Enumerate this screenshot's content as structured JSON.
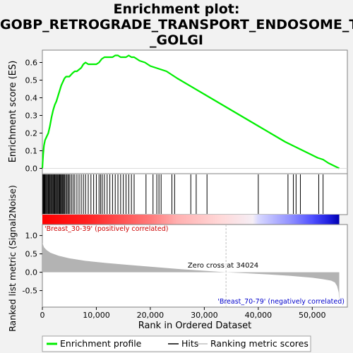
{
  "title_lines": [
    "Enrichment plot:",
    "GOBP_RETROGRADE_TRANSPORT_ENDOSOME_TO",
    "_GOLGI"
  ],
  "colors": {
    "es_line": "#00ee00",
    "hits": "#000000",
    "metric_fill": "#b3b3b3",
    "pos_label": "#cc0000",
    "neg_label": "#0000cc",
    "zero_line": "#bfbfbf"
  },
  "chart_data": {
    "type": "line",
    "x_range": [
      0,
      56500
    ],
    "enrichment": {
      "ylabel": "Enrichment score (ES)",
      "ylim": [
        -0.03,
        0.67
      ],
      "yticks": [
        0.0,
        0.1,
        0.2,
        0.3,
        0.4,
        0.5,
        0.6
      ],
      "ytick_labels": [
        "0.0",
        "0.1",
        "0.2",
        "0.3",
        "0.4",
        "0.5",
        "0.6"
      ],
      "series_name": "Enrichment profile",
      "points": [
        [
          0,
          0.0
        ],
        [
          50,
          0.03
        ],
        [
          150,
          0.08
        ],
        [
          300,
          0.13
        ],
        [
          500,
          0.16
        ],
        [
          800,
          0.18
        ],
        [
          1100,
          0.2
        ],
        [
          1400,
          0.24
        ],
        [
          1700,
          0.29
        ],
        [
          2000,
          0.33
        ],
        [
          2300,
          0.36
        ],
        [
          2600,
          0.38
        ],
        [
          2900,
          0.41
        ],
        [
          3200,
          0.44
        ],
        [
          3500,
          0.47
        ],
        [
          3800,
          0.49
        ],
        [
          4100,
          0.51
        ],
        [
          4400,
          0.52
        ],
        [
          4700,
          0.52
        ],
        [
          5000,
          0.52
        ],
        [
          5300,
          0.53
        ],
        [
          5600,
          0.54
        ],
        [
          6000,
          0.55
        ],
        [
          6400,
          0.55
        ],
        [
          6800,
          0.56
        ],
        [
          7200,
          0.57
        ],
        [
          7600,
          0.59
        ],
        [
          8000,
          0.6
        ],
        [
          8500,
          0.59
        ],
        [
          9000,
          0.59
        ],
        [
          9500,
          0.59
        ],
        [
          10000,
          0.59
        ],
        [
          10500,
          0.6
        ],
        [
          11000,
          0.62
        ],
        [
          11500,
          0.63
        ],
        [
          12000,
          0.63
        ],
        [
          12500,
          0.63
        ],
        [
          13000,
          0.63
        ],
        [
          13500,
          0.64
        ],
        [
          14000,
          0.64
        ],
        [
          14500,
          0.63
        ],
        [
          15000,
          0.63
        ],
        [
          15500,
          0.63
        ],
        [
          16000,
          0.64
        ],
        [
          16500,
          0.63
        ],
        [
          17000,
          0.63
        ],
        [
          18000,
          0.61
        ],
        [
          19000,
          0.6
        ],
        [
          20000,
          0.58
        ],
        [
          21000,
          0.57
        ],
        [
          22000,
          0.56
        ],
        [
          23000,
          0.55
        ],
        [
          24000,
          0.53
        ],
        [
          25000,
          0.51
        ],
        [
          30000,
          0.42
        ],
        [
          35000,
          0.33
        ],
        [
          40000,
          0.24
        ],
        [
          45000,
          0.15
        ],
        [
          47000,
          0.12
        ],
        [
          49000,
          0.09
        ],
        [
          51000,
          0.06
        ],
        [
          52000,
          0.05
        ],
        [
          53000,
          0.03
        ],
        [
          55000,
          0.0
        ]
      ]
    },
    "hits": {
      "series_name": "Hits",
      "positions": [
        100,
        200,
        300,
        400,
        500,
        650,
        800,
        950,
        1100,
        1250,
        1400,
        1550,
        1700,
        1850,
        2000,
        2150,
        2300,
        2450,
        2600,
        2750,
        2900,
        3050,
        3200,
        3350,
        3500,
        3650,
        3800,
        3950,
        4100,
        4300,
        4500,
        4700,
        4900,
        5100,
        5400,
        5700,
        6000,
        6400,
        6800,
        7200,
        7600,
        8000,
        8500,
        9000,
        9500,
        10000,
        10500,
        10800,
        11100,
        11500,
        12000,
        12500,
        13000,
        13500,
        14000,
        14500,
        15000,
        15500,
        16000,
        16500,
        17000,
        19200,
        20500,
        21200,
        21600,
        22000,
        24000,
        24500,
        27500,
        28500,
        30500,
        40000,
        45500,
        46500,
        47000,
        47800,
        51200,
        52000
      ]
    },
    "metric": {
      "ylabel": "Ranked list metric (Signal2Noise)",
      "ylim": [
        -0.95,
        1.3
      ],
      "yticks": [
        -0.5,
        0.0,
        0.5,
        1.0
      ],
      "ytick_labels": [
        "-0.5",
        "0.0",
        "0.5",
        "1.0"
      ],
      "series_name": "Ranking metric scores",
      "points": [
        [
          0,
          0.8
        ],
        [
          300,
          0.68
        ],
        [
          800,
          0.6
        ],
        [
          1500,
          0.53
        ],
        [
          3000,
          0.45
        ],
        [
          5000,
          0.38
        ],
        [
          8000,
          0.31
        ],
        [
          12000,
          0.25
        ],
        [
          16000,
          0.2
        ],
        [
          20000,
          0.15
        ],
        [
          25000,
          0.09
        ],
        [
          30000,
          0.04
        ],
        [
          34024,
          0.0
        ],
        [
          38000,
          -0.03
        ],
        [
          42000,
          -0.06
        ],
        [
          46000,
          -0.1
        ],
        [
          50000,
          -0.15
        ],
        [
          52000,
          -0.19
        ],
        [
          53500,
          -0.23
        ],
        [
          54200,
          -0.28
        ],
        [
          54600,
          -0.38
        ],
        [
          54900,
          -0.55
        ],
        [
          55000,
          -0.85
        ]
      ]
    },
    "heatmap_gradient": [
      {
        "x": 0,
        "color": "#ff0000"
      },
      {
        "x": 8000,
        "color": "#ff2020"
      },
      {
        "x": 20000,
        "color": "#ff7a7a"
      },
      {
        "x": 25000,
        "color": "#ffb0b0"
      },
      {
        "x": 33000,
        "color": "#ffd8d8"
      },
      {
        "x": 39000,
        "color": "#f5eef5"
      },
      {
        "x": 40000,
        "color": "#d8d8ff"
      },
      {
        "x": 46000,
        "color": "#9090ff"
      },
      {
        "x": 50000,
        "color": "#5050ff"
      },
      {
        "x": 53000,
        "color": "#2020e0"
      },
      {
        "x": 55000,
        "color": "#0000b0"
      }
    ],
    "xlabel": "Rank in Ordered Dataset",
    "xticks": [
      0,
      10000,
      20000,
      30000,
      40000,
      50000
    ],
    "xtick_labels": [
      "0",
      "10,000",
      "20,000",
      "30,000",
      "40,000",
      "50,000"
    ],
    "zero_cross": {
      "x": 34024,
      "label": "Zero cross at 34024"
    },
    "pos_label": "'Breast_30-39' (positively correlated)",
    "neg_label": "'Breast_70-79' (negatively correlated)",
    "legend": {
      "placement": "bottom",
      "entries": [
        "Enrichment profile",
        "Hits",
        "Ranking metric scores"
      ]
    }
  }
}
